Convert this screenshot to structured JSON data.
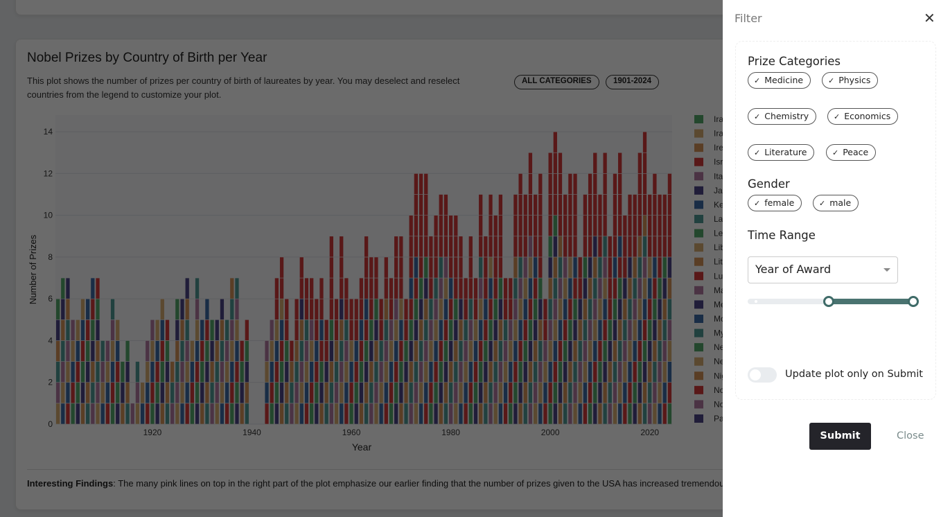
{
  "card": {
    "title": "Nobel Prizes by Country of Birth per Year",
    "description": "This plot shows the number of prizes per country of birth of laureates by year. You may deselect and reselect countries from the legend to customize your plot.",
    "badges": [
      "ALL CATEGORIES",
      "1901-2024"
    ],
    "findings_label": "Interesting Findings",
    "findings_text": ": The many pink lines on top in the right part of the plot emphasize our earlier finding that the number of prizes given to the USA has increased tremendou"
  },
  "chart_data": {
    "type": "bar",
    "stacked": true,
    "xlabel": "Year",
    "ylabel": "Number of Prizes",
    "ylim": [
      0,
      14.8
    ],
    "xlim": [
      1900.5,
      2024.5
    ],
    "yticks": [
      "0",
      "2",
      "4",
      "6",
      "8",
      "10",
      "12",
      "14"
    ],
    "xticks": [
      "1920",
      "1940",
      "1960",
      "1980",
      "2000",
      "2020"
    ],
    "grid": true,
    "legend_placement": "right",
    "legend": [
      {
        "label": "Ira",
        "color": "#54a86a"
      },
      {
        "label": "Ira",
        "color": "#d9ad72"
      },
      {
        "label": "Ire",
        "color": "#d69357"
      },
      {
        "label": "Isr",
        "color": "#d33a3a"
      },
      {
        "label": "Ita",
        "color": "#b27aa2"
      },
      {
        "label": "Ja",
        "color": "#4d4588"
      },
      {
        "label": "Ke",
        "color": "#3b6aa6"
      },
      {
        "label": "La",
        "color": "#4f9a96"
      },
      {
        "label": "Le",
        "color": "#54a86a"
      },
      {
        "label": "Lib",
        "color": "#d9ad72"
      },
      {
        "label": "Lit",
        "color": "#d69357"
      },
      {
        "label": "Lu",
        "color": "#d33a3a"
      },
      {
        "label": "Ma",
        "color": "#b27aa2"
      },
      {
        "label": "Me",
        "color": "#4d4588"
      },
      {
        "label": "Mo",
        "color": "#3b6aa6"
      },
      {
        "label": "My",
        "color": "#4f9a96"
      },
      {
        "label": "Ne",
        "color": "#54a86a"
      },
      {
        "label": "Ne",
        "color": "#d9ad72"
      },
      {
        "label": "Nig",
        "color": "#d69357"
      },
      {
        "label": "No",
        "color": "#d33a3a"
      },
      {
        "label": "No",
        "color": "#b27aa2"
      },
      {
        "label": "Pa",
        "color": "#4d4588"
      }
    ],
    "years": [
      1901,
      1902,
      1903,
      1904,
      1905,
      1906,
      1907,
      1908,
      1909,
      1910,
      1911,
      1912,
      1913,
      1914,
      1915,
      1916,
      1917,
      1918,
      1919,
      1920,
      1921,
      1922,
      1923,
      1924,
      1925,
      1926,
      1927,
      1928,
      1929,
      1930,
      1931,
      1932,
      1933,
      1934,
      1935,
      1936,
      1937,
      1938,
      1939,
      1940,
      1941,
      1942,
      1943,
      1944,
      1945,
      1946,
      1947,
      1948,
      1949,
      1950,
      1951,
      1952,
      1953,
      1954,
      1955,
      1956,
      1957,
      1958,
      1959,
      1960,
      1961,
      1962,
      1963,
      1964,
      1965,
      1966,
      1967,
      1968,
      1969,
      1970,
      1971,
      1972,
      1973,
      1974,
      1975,
      1976,
      1977,
      1978,
      1979,
      1980,
      1981,
      1982,
      1983,
      1984,
      1985,
      1986,
      1987,
      1988,
      1989,
      1990,
      1991,
      1992,
      1993,
      1994,
      1995,
      1996,
      1997,
      1998,
      1999,
      2000,
      2001,
      2002,
      2003,
      2004,
      2005,
      2006,
      2007,
      2008,
      2009,
      2010,
      2011,
      2012,
      2013,
      2014,
      2015,
      2016,
      2017,
      2018,
      2019,
      2020,
      2021,
      2022,
      2023,
      2024
    ],
    "totals": [
      6,
      7,
      7,
      5,
      5,
      6,
      6,
      7,
      7,
      4,
      4,
      6,
      5,
      3,
      4,
      1,
      3,
      2,
      4,
      5,
      5,
      6,
      5,
      3,
      6,
      6,
      7,
      4,
      7,
      5,
      6,
      5,
      5,
      6,
      5,
      7,
      7,
      4,
      5,
      0,
      0,
      0,
      4,
      5,
      7,
      8,
      6,
      4,
      6,
      8,
      7,
      7,
      6,
      7,
      5,
      9,
      6,
      9,
      7,
      6,
      6,
      7,
      9,
      8,
      8,
      6,
      8,
      7,
      9,
      9,
      6,
      10,
      12,
      12,
      12,
      9,
      10,
      11,
      11,
      10,
      10,
      9,
      7,
      9,
      7,
      11,
      9,
      11,
      10,
      11,
      7,
      7,
      11,
      12,
      11,
      13,
      11,
      12,
      6,
      13,
      14,
      13,
      11,
      12,
      12,
      8,
      11,
      12,
      13,
      11,
      13,
      9,
      12,
      13,
      10,
      11,
      11,
      13,
      14,
      11,
      12,
      11,
      11,
      12
    ]
  },
  "filter": {
    "title": "Filter",
    "prize_categories_label": "Prize Categories",
    "categories": [
      "Medicine",
      "Physics",
      "Chemistry",
      "Economics",
      "Literature",
      "Peace"
    ],
    "gender_label": "Gender",
    "genders": [
      "female",
      "male"
    ],
    "time_range_label": "Time Range",
    "time_range_select": "Year of Award",
    "slider_range_fraction": [
      0.47,
      1.0
    ],
    "toggle_label": "Update plot only on Submit",
    "toggle_on": false,
    "submit_label": "Submit",
    "close_label": "Close",
    "accent_color": "#4a7370"
  }
}
